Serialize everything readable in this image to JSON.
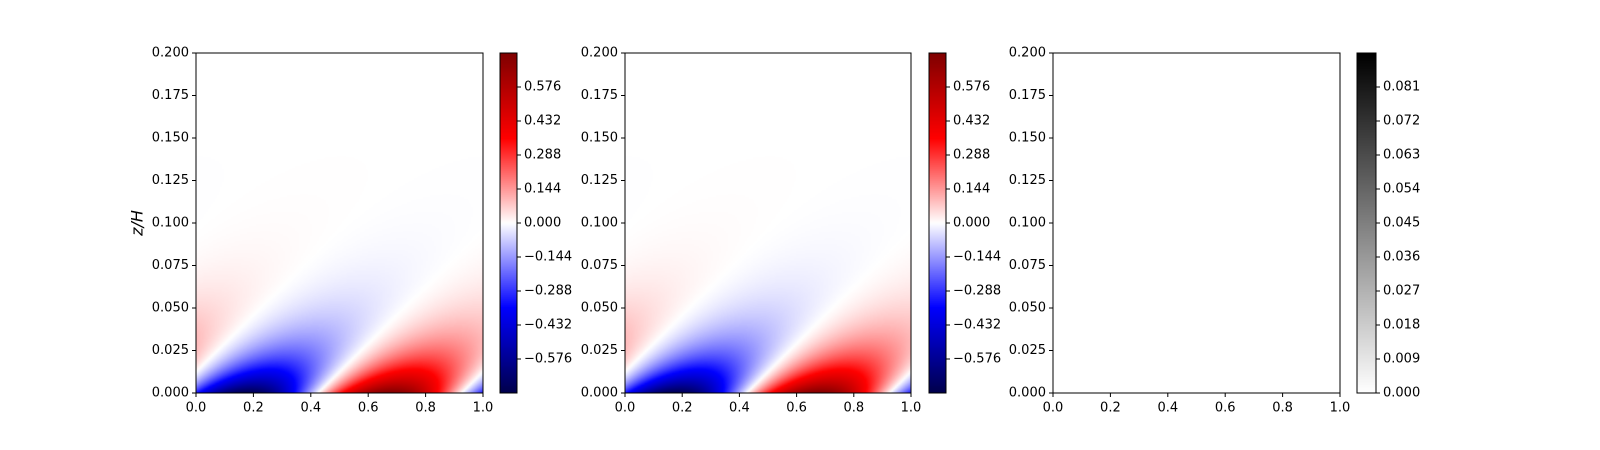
{
  "chart_data": [
    {
      "type": "heatmap",
      "title": "",
      "xlabel": "",
      "ylabel": "z/H",
      "xlim": [
        0.0,
        1.0
      ],
      "ylim": [
        0.0,
        0.2
      ],
      "x_ticks": [
        "0.0",
        "0.2",
        "0.4",
        "0.6",
        "0.8",
        "1.0"
      ],
      "y_ticks": [
        "0.000",
        "0.025",
        "0.050",
        "0.075",
        "0.100",
        "0.125",
        "0.150",
        "0.175",
        "0.200"
      ],
      "colormap": "seismic",
      "colorbar": {
        "min": -0.72,
        "max": 0.72,
        "ticks": [
          "0.576",
          "0.432",
          "0.288",
          "0.144",
          "0.000",
          "−0.144",
          "−0.288",
          "−0.432",
          "−0.576"
        ],
        "tick_values": [
          0.576,
          0.432,
          0.288,
          0.144,
          0.0,
          -0.144,
          -0.288,
          -0.432,
          -0.576
        ]
      },
      "field": {
        "description_free": true,
        "amplitude": 0.72,
        "x_wavenumber_cycles": 1,
        "decay_height": 0.02,
        "phase_tilt_per_z": 6.0
      }
    },
    {
      "type": "heatmap",
      "title": "",
      "xlabel": "",
      "ylabel": "",
      "xlim": [
        0.0,
        1.0
      ],
      "ylim": [
        0.0,
        0.2
      ],
      "x_ticks": [
        "0.0",
        "0.2",
        "0.4",
        "0.6",
        "0.8",
        "1.0"
      ],
      "y_ticks": [
        "0.000",
        "0.025",
        "0.050",
        "0.075",
        "0.100",
        "0.125",
        "0.150",
        "0.175",
        "0.200"
      ],
      "colormap": "seismic",
      "colorbar": {
        "min": -0.72,
        "max": 0.72,
        "ticks": [
          "0.576",
          "0.432",
          "0.288",
          "0.144",
          "0.000",
          "−0.144",
          "−0.288",
          "−0.432",
          "−0.576"
        ],
        "tick_values": [
          0.576,
          0.432,
          0.288,
          0.144,
          0.0,
          -0.144,
          -0.288,
          -0.432,
          -0.576
        ]
      },
      "field": {
        "amplitude": 0.72,
        "x_wavenumber_cycles": 1,
        "decay_height": 0.02,
        "phase_tilt_per_z": 6.0
      }
    },
    {
      "type": "heatmap",
      "title": "",
      "xlabel": "",
      "ylabel": "",
      "xlim": [
        0.0,
        1.0
      ],
      "ylim": [
        0.0,
        0.2
      ],
      "x_ticks": [
        "0.0",
        "0.2",
        "0.4",
        "0.6",
        "0.8",
        "1.0"
      ],
      "y_ticks": [
        "0.000",
        "0.025",
        "0.050",
        "0.075",
        "0.100",
        "0.125",
        "0.150",
        "0.175",
        "0.200"
      ],
      "colormap": "gray_r",
      "colorbar": {
        "min": 0.0,
        "max": 0.09,
        "ticks": [
          "0.081",
          "0.072",
          "0.063",
          "0.054",
          "0.045",
          "0.036",
          "0.027",
          "0.018",
          "0.009",
          "0.000"
        ],
        "tick_values": [
          0.081,
          0.072,
          0.063,
          0.054,
          0.045,
          0.036,
          0.027,
          0.018,
          0.009,
          0.0
        ]
      },
      "field": {
        "amplitude": 0.0,
        "x_wavenumber_cycles": 1,
        "decay_height": 0.001,
        "phase_tilt_per_z": 0.0
      }
    }
  ]
}
